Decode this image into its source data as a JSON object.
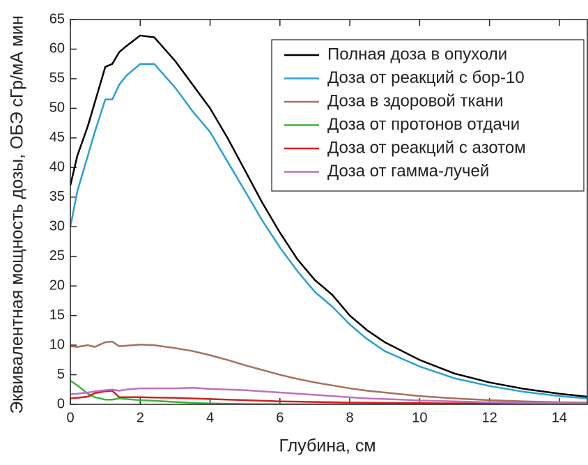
{
  "chart_data": {
    "type": "line",
    "xlabel": "Глубина, см",
    "ylabel": "Эквивалентная мощность дозы, ОБЭ сГр/мА мин",
    "x": [
      0,
      0.2,
      0.5,
      0.7,
      1,
      1.2,
      1.4,
      1.6,
      2,
      2.4,
      3,
      3.5,
      4,
      4.5,
      5,
      5.5,
      6,
      6.5,
      7,
      7.5,
      8,
      8.5,
      9,
      9.5,
      10,
      11,
      12,
      13,
      14,
      14.8
    ],
    "series": [
      {
        "name": "Полная доза в опухоли",
        "color": "#000000",
        "values": [
          37,
          42,
          47,
          51,
          57,
          57.5,
          59.5,
          60.5,
          62.3,
          62,
          58,
          54,
          50,
          45,
          39.5,
          34,
          29,
          24.5,
          21,
          18.5,
          15,
          12.5,
          10.5,
          9,
          7.5,
          5.2,
          3.7,
          2.6,
          1.8,
          1.3
        ]
      },
      {
        "name": "Доза от реакций с бор-10",
        "color": "#2a9fd6",
        "values": [
          30,
          36,
          42,
          46,
          51.5,
          51.5,
          54,
          55.5,
          57.5,
          57.5,
          53.5,
          49.5,
          46,
          41,
          36,
          31,
          26.5,
          22.5,
          19,
          16.5,
          13.5,
          11,
          9,
          7.7,
          6.4,
          4.4,
          3.1,
          2.1,
          1.4,
          1.0
        ]
      },
      {
        "name": "Доза в здоровой ткани",
        "color": "#a8705a",
        "values": [
          9.8,
          9.7,
          10,
          9.7,
          10.5,
          10.6,
          9.8,
          9.9,
          10.1,
          10,
          9.5,
          9,
          8.3,
          7.5,
          6.6,
          5.8,
          5,
          4.3,
          3.7,
          3.2,
          2.7,
          2.3,
          2,
          1.7,
          1.4,
          1.0,
          0.7,
          0.5,
          0.35,
          0.3
        ]
      },
      {
        "name": "Доза от протонов отдачи",
        "color": "#3cb43c",
        "values": [
          4,
          3.2,
          1.8,
          1.2,
          0.8,
          0.8,
          1,
          0.9,
          0.7,
          0.6,
          0.4,
          0.25,
          0.15,
          0.1,
          0.05,
          0.03,
          0.02,
          0.02,
          0.01,
          0.01,
          0,
          0,
          0,
          0,
          0,
          0,
          0,
          0,
          0,
          0
        ]
      },
      {
        "name": "Доза от реакций с азотом",
        "color": "#d42020",
        "values": [
          1,
          1.1,
          1.3,
          1.9,
          2.2,
          2.3,
          1.2,
          1.2,
          1.2,
          1.15,
          1.1,
          1,
          0.9,
          0.8,
          0.7,
          0.6,
          0.5,
          0.45,
          0.4,
          0.35,
          0.3,
          0.28,
          0.25,
          0.22,
          0.2,
          0.17,
          0.14,
          0.12,
          0.1,
          0.1
        ]
      },
      {
        "name": "Доза от гамма-лучей",
        "color": "#c070c0",
        "values": [
          1.7,
          1.8,
          2.0,
          2.2,
          2.4,
          2.5,
          2.3,
          2.5,
          2.7,
          2.7,
          2.7,
          2.8,
          2.6,
          2.5,
          2.4,
          2.2,
          2.0,
          1.8,
          1.6,
          1.4,
          1.2,
          1.0,
          0.9,
          0.8,
          0.65,
          0.5,
          0.35,
          0.25,
          0.2,
          0.15
        ]
      }
    ],
    "xlim": [
      0,
      14.8
    ],
    "ylim": [
      0,
      65
    ],
    "xticks": [
      0,
      2,
      4,
      6,
      8,
      10,
      12,
      14
    ],
    "yticks": [
      0,
      5,
      10,
      15,
      20,
      25,
      30,
      35,
      40,
      45,
      50,
      55,
      60,
      65
    ],
    "grid": false,
    "legend": "upper right"
  }
}
